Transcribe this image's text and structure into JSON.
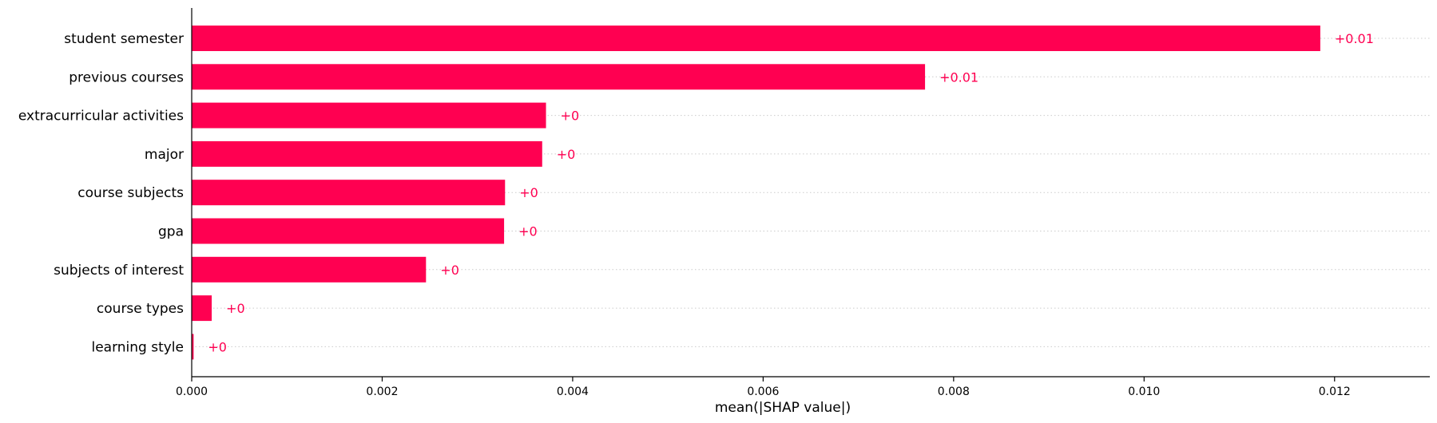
{
  "chart_data": {
    "type": "bar",
    "orientation": "horizontal",
    "categories": [
      "student semester",
      "previous courses",
      "extracurricular activities",
      "major",
      "course subjects",
      "gpa",
      "subjects of interest",
      "course types",
      "learning style"
    ],
    "values": [
      0.01185,
      0.0077,
      0.00372,
      0.00368,
      0.00329,
      0.00328,
      0.00246,
      0.00021,
      2e-05
    ],
    "value_labels": [
      "+0.01",
      "+0.01",
      "+0",
      "+0",
      "+0",
      "+0",
      "+0",
      "+0",
      "+0"
    ],
    "xlabel": "mean(|SHAP value|)",
    "xlim": [
      0,
      0.013
    ],
    "xticks": [
      0.0,
      0.002,
      0.004,
      0.006,
      0.008,
      0.01,
      0.012
    ],
    "xtick_labels": [
      "0.000",
      "0.002",
      "0.004",
      "0.006",
      "0.008",
      "0.010",
      "0.012"
    ],
    "bar_color": "#ff0051",
    "grid": "dotted horizontal guide lines"
  }
}
